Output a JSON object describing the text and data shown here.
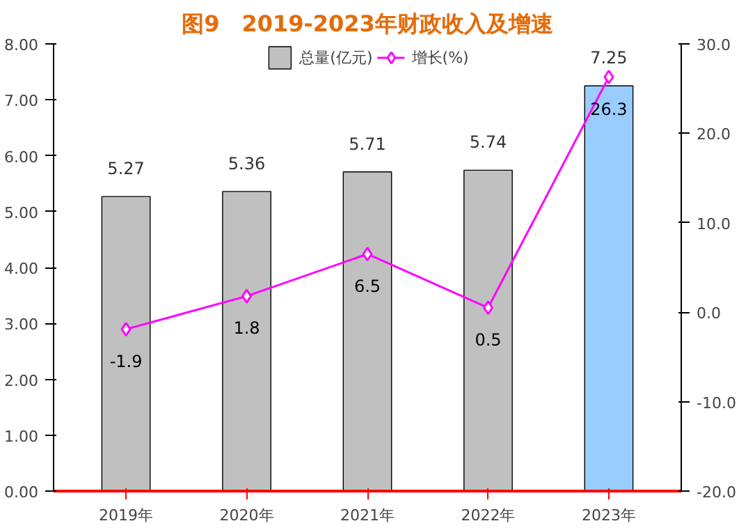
{
  "chart_data": {
    "type": "bar",
    "title": "图9　2019-2023年财政收入及增速",
    "categories": [
      "2019年",
      "2020年",
      "2021年",
      "2022年",
      "2023年"
    ],
    "series": [
      {
        "name": "总量(亿元)",
        "colors": [
          "#c0c0c0",
          "#c0c0c0",
          "#c0c0c0",
          "#c0c0c0",
          "#99ccff"
        ],
        "values": [
          5.27,
          5.36,
          5.71,
          5.74,
          7.25
        ]
      },
      {
        "name": "增长(%)",
        "type": "line",
        "axis": "y2",
        "color": "#ff00ff",
        "marker": "diamond",
        "values": [
          -1.9,
          1.8,
          6.5,
          0.5,
          26.3
        ]
      }
    ],
    "ylim": [
      0,
      8
    ],
    "yticks": [
      {
        "value": 0,
        "label": "0.00"
      },
      {
        "value": 1,
        "label": "1.00"
      },
      {
        "value": 2,
        "label": "2.00"
      },
      {
        "value": 3,
        "label": "3.00"
      },
      {
        "value": 4,
        "label": "4.00"
      },
      {
        "value": 5,
        "label": "5.00"
      },
      {
        "value": 6,
        "label": "6.00"
      },
      {
        "value": 7,
        "label": "7.00"
      },
      {
        "value": 8,
        "label": "8.00"
      }
    ],
    "y2lim": [
      -20,
      30
    ],
    "y2ticks": [
      {
        "value": -20,
        "label": "-20.0"
      },
      {
        "value": -10,
        "label": "-10.0"
      },
      {
        "value": 0,
        "label": "0.0"
      },
      {
        "value": 10,
        "label": "10.0"
      },
      {
        "value": 20,
        "label": "20.0"
      },
      {
        "value": 30,
        "label": "30.0"
      }
    ],
    "data_labels": true,
    "legend": "top",
    "grid": false
  }
}
